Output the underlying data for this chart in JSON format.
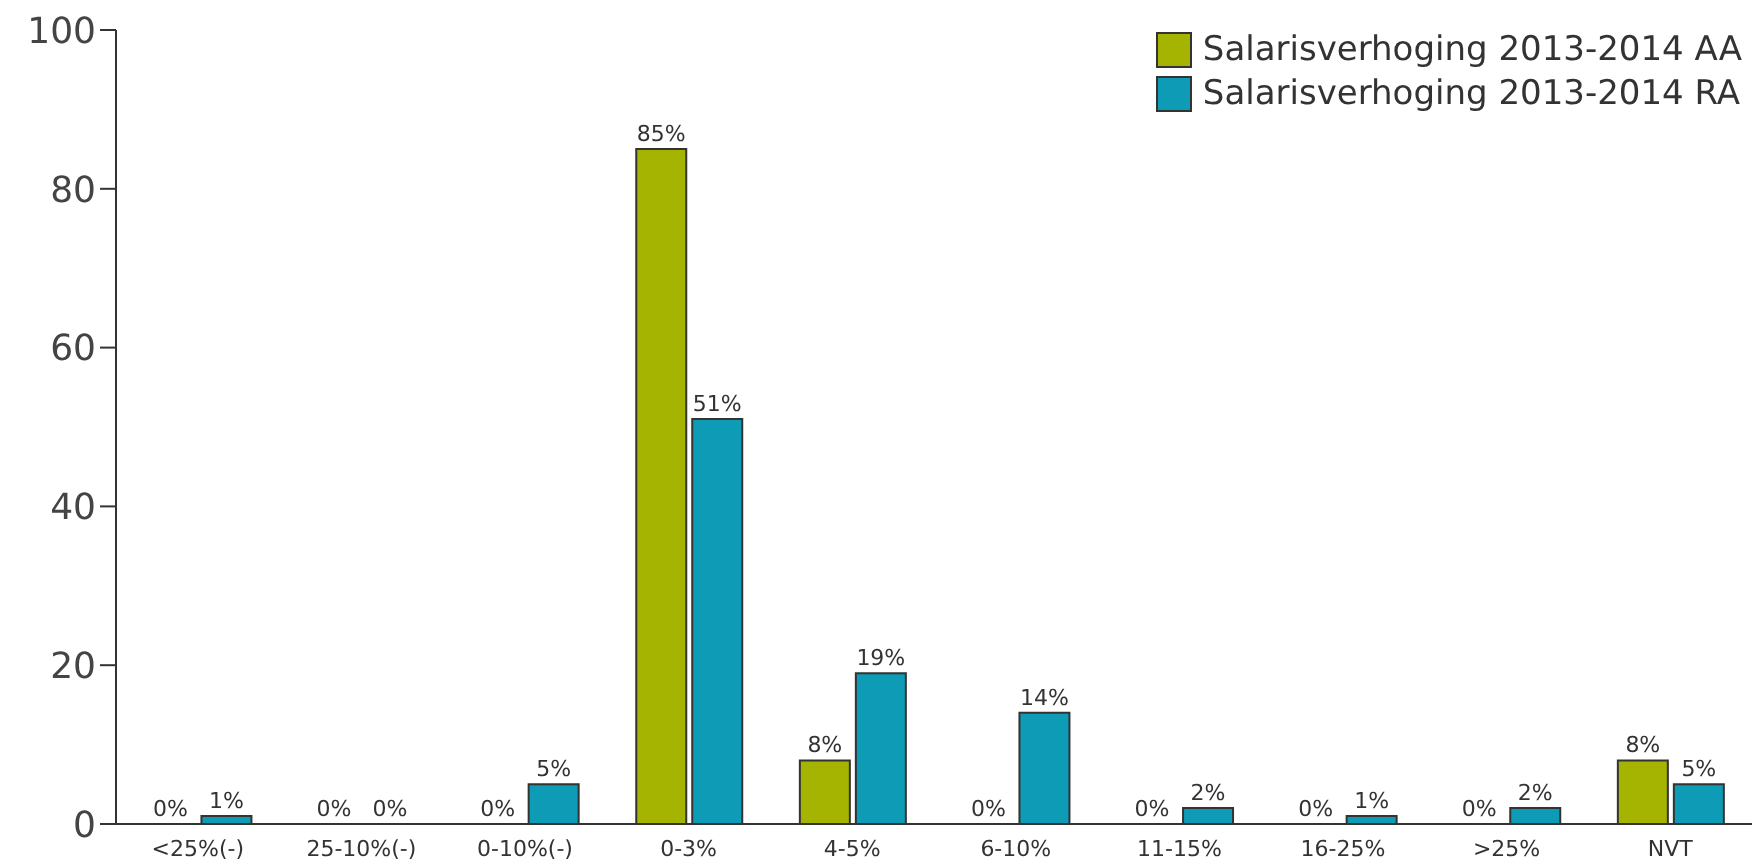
{
  "chart_data": {
    "type": "bar",
    "categories": [
      "<25%(-)",
      "25-10%(-)",
      "0-10%(-)",
      "0-3%",
      "4-5%",
      "6-10%",
      "11-15%",
      "16-25%",
      ">25%",
      "NVT"
    ],
    "series": [
      {
        "name": "Salarisverhoging 2013-2014 AA",
        "color": "#a5b400",
        "values": [
          0,
          0,
          0,
          85,
          8,
          0,
          0,
          0,
          0,
          8
        ],
        "value_labels": [
          "0%",
          "0%",
          "0%",
          "85%",
          "8%",
          "0%",
          "0%",
          "0%",
          "0%",
          "8%"
        ]
      },
      {
        "name": "Salarisverhoging 2013-2014 RA",
        "color": "#0e9bb5",
        "values": [
          1,
          0,
          5,
          51,
          19,
          14,
          2,
          1,
          2,
          5
        ],
        "value_labels": [
          "1%",
          "0%",
          "5%",
          "51%",
          "19%",
          "14%",
          "2%",
          "1%",
          "2%",
          "5%"
        ]
      }
    ],
    "ylim": [
      0,
      100
    ],
    "yticks": [
      0,
      20,
      40,
      60,
      80,
      100
    ],
    "grid": false,
    "legend": "top right"
  }
}
